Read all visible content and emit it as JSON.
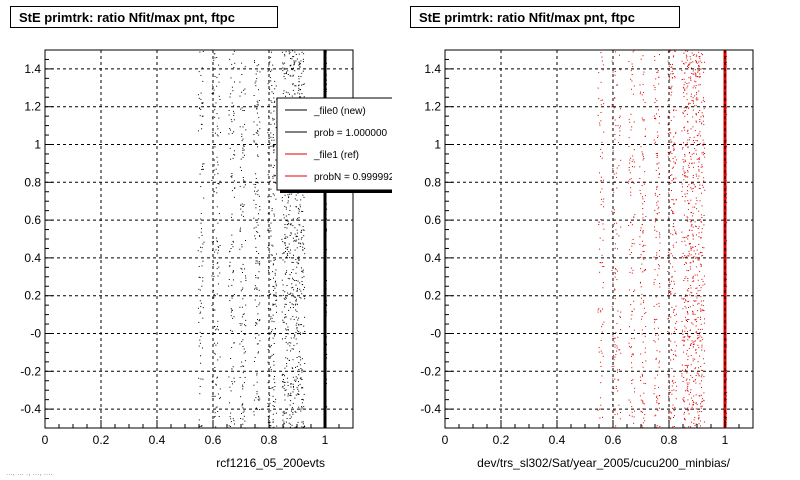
{
  "footer_text": "..., ... ., ..., ....",
  "colors": {
    "new": "#000000",
    "ref": "#dd0000",
    "grid": "#000000",
    "legend_shadow": "#000000"
  },
  "legend": {
    "entries": [
      {
        "label": "_file0 (new)",
        "color": "#000000"
      },
      {
        "label": "prob = 1.000000",
        "color": "#000000"
      },
      {
        "label": "_file1 (ref)",
        "color": "#dd0000"
      },
      {
        "label": "probN = 0.999992",
        "color": "#dd0000"
      }
    ]
  },
  "chart_data": [
    {
      "type": "scatter",
      "title": "StE primtrk: ratio Nfit/max pnt, ftpc",
      "xlabel": "rcf1216_05_200evts",
      "ylabel": "",
      "xlim": [
        0,
        1.1
      ],
      "ylim": [
        -0.5,
        1.5
      ],
      "x_ticks": [
        "0",
        "0.2",
        "0.4",
        "0.6",
        "0.8",
        "1"
      ],
      "y_ticks": [
        "-0.4",
        "-0.2",
        "-0",
        "0.2",
        "0.4",
        "0.6",
        "0.8",
        "1",
        "1.2",
        "1.4"
      ],
      "grid": true,
      "series": [
        {
          "name": "_file0 (new)",
          "color": "#000000",
          "x_values": [
            0.55,
            0.56,
            0.6,
            0.61,
            0.62,
            0.66,
            0.67,
            0.7,
            0.71,
            0.75,
            0.76,
            0.8,
            0.81,
            0.82,
            0.85,
            0.86,
            0.87,
            0.88,
            0.89,
            0.9,
            0.91,
            0.92,
            1.0
          ],
          "density": [
            0.4,
            0.5,
            0.6,
            0.5,
            0.4,
            0.5,
            0.6,
            0.7,
            0.6,
            0.7,
            0.8,
            0.9,
            0.8,
            0.7,
            1.0,
            1.0,
            1.0,
            1.0,
            1.0,
            1.0,
            1.0,
            0.9,
            3.0
          ],
          "y_range": [
            -0.5,
            1.5
          ]
        }
      ]
    },
    {
      "type": "scatter",
      "title": "StE primtrk: ratio Nfit/max pnt, ftpc",
      "xlabel": "dev/trs_sl302/Sat/year_2005/cucu200_minbias/",
      "ylabel": "",
      "xlim": [
        0,
        1.1
      ],
      "ylim": [
        -0.5,
        1.5
      ],
      "x_ticks": [
        "0",
        "0.2",
        "0.4",
        "0.6",
        "0.8",
        "1"
      ],
      "y_ticks": [
        "-0.4",
        "-0.2",
        "-0",
        "0.2",
        "0.4",
        "0.6",
        "0.8",
        "1",
        "1.2",
        "1.4"
      ],
      "grid": true,
      "series": [
        {
          "name": "_file1 (ref)",
          "color": "#dd0000",
          "x_values": [
            0.55,
            0.56,
            0.6,
            0.61,
            0.62,
            0.66,
            0.67,
            0.7,
            0.71,
            0.75,
            0.76,
            0.8,
            0.81,
            0.82,
            0.85,
            0.86,
            0.87,
            0.88,
            0.89,
            0.9,
            0.91,
            0.92,
            1.0
          ],
          "density": [
            0.4,
            0.5,
            0.6,
            0.5,
            0.4,
            0.5,
            0.6,
            0.7,
            0.6,
            0.7,
            0.8,
            0.9,
            0.8,
            0.7,
            1.0,
            1.0,
            1.0,
            1.0,
            1.0,
            1.0,
            1.0,
            0.9,
            3.0
          ],
          "y_range": [
            -0.5,
            1.5
          ]
        }
      ]
    }
  ]
}
